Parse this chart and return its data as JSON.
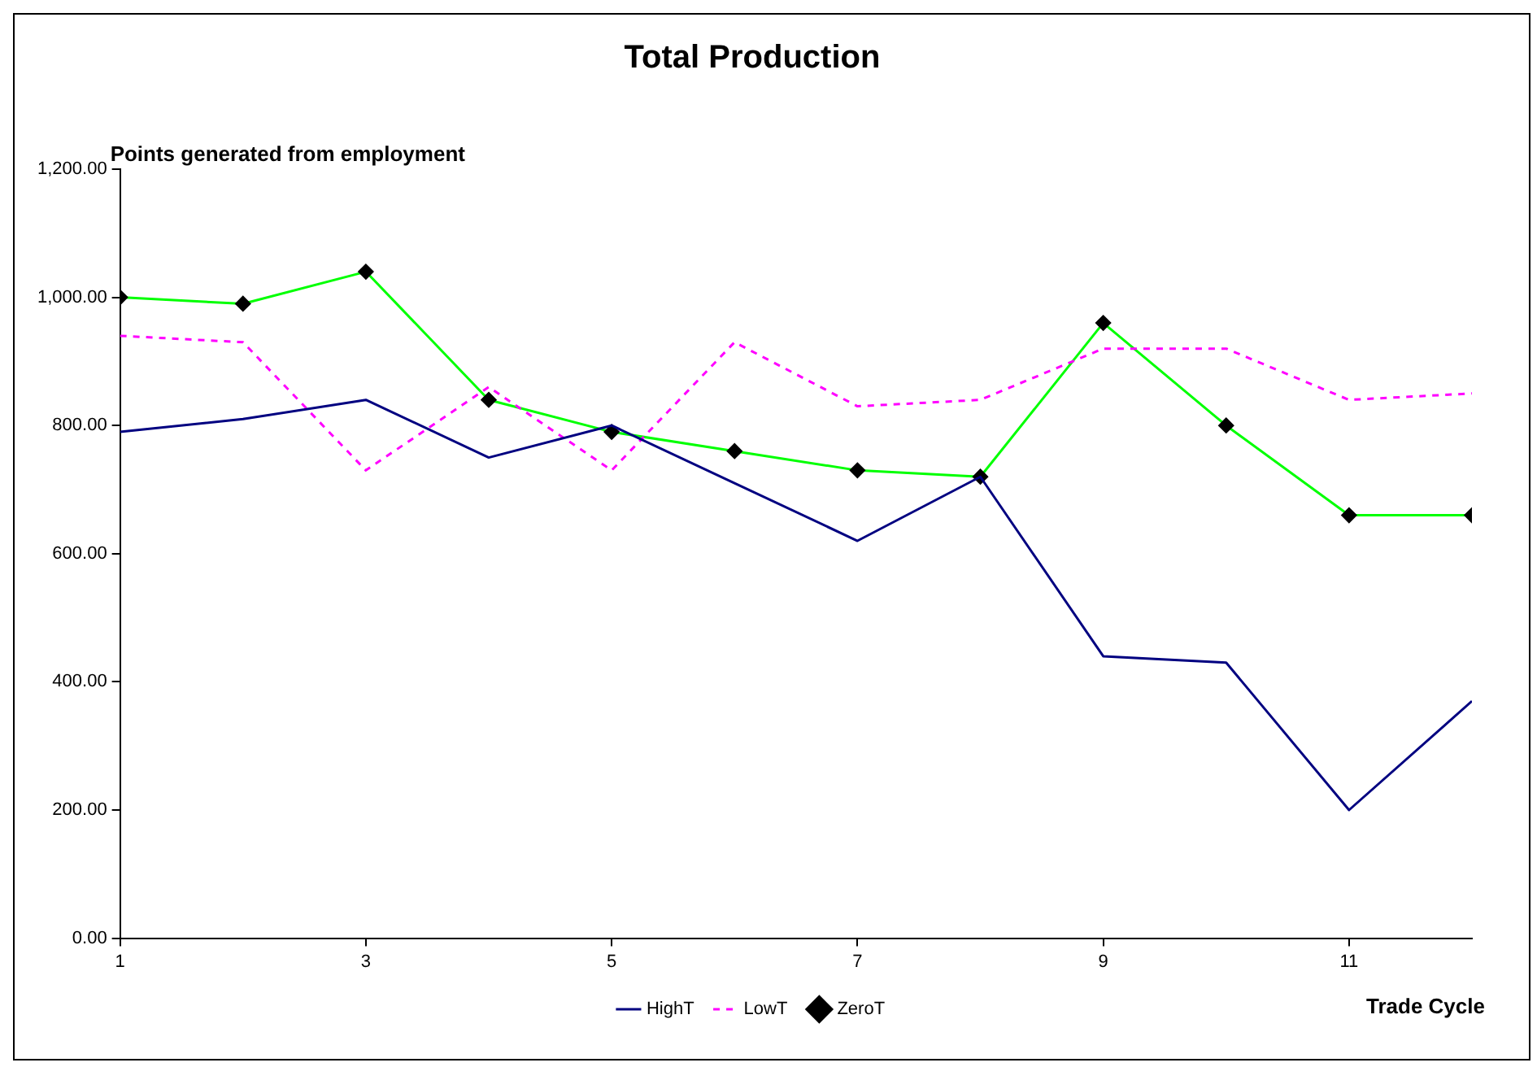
{
  "chart_data": {
    "type": "line",
    "title": "Total Production",
    "ylabel": "Points generated from employment",
    "xlabel": "Trade Cycle",
    "x": [
      1,
      2,
      3,
      4,
      5,
      6,
      7,
      8,
      9,
      10,
      11,
      12
    ],
    "xlim": [
      1,
      12
    ],
    "xticks": [
      1,
      3,
      5,
      7,
      9,
      11
    ],
    "ylim": [
      0,
      1200
    ],
    "yticks": [
      {
        "value": 0,
        "label": "0.00"
      },
      {
        "value": 200,
        "label": "200.00"
      },
      {
        "value": 400,
        "label": "400.00"
      },
      {
        "value": 600,
        "label": "600.00"
      },
      {
        "value": 800,
        "label": "800.00"
      },
      {
        "value": 1000,
        "label": "1,000.00"
      },
      {
        "value": 1200,
        "label": "1,200.00"
      }
    ],
    "grid": false,
    "legend": "bottom",
    "series": [
      {
        "name": "HighT",
        "color": "#000080",
        "line_style": "solid",
        "marker": "none",
        "values": [
          790,
          810,
          840,
          750,
          800,
          710,
          620,
          720,
          440,
          430,
          200,
          370
        ]
      },
      {
        "name": "LowT",
        "color": "#ff00ff",
        "line_style": "dashed",
        "marker": "none",
        "values": [
          940,
          930,
          730,
          860,
          730,
          930,
          830,
          840,
          920,
          920,
          840,
          850
        ]
      },
      {
        "name": "ZeroT",
        "color": "#00ff00",
        "line_style": "solid",
        "marker": "diamond",
        "values": [
          1000,
          990,
          1040,
          840,
          790,
          760,
          730,
          720,
          960,
          800,
          660,
          660
        ]
      }
    ]
  }
}
